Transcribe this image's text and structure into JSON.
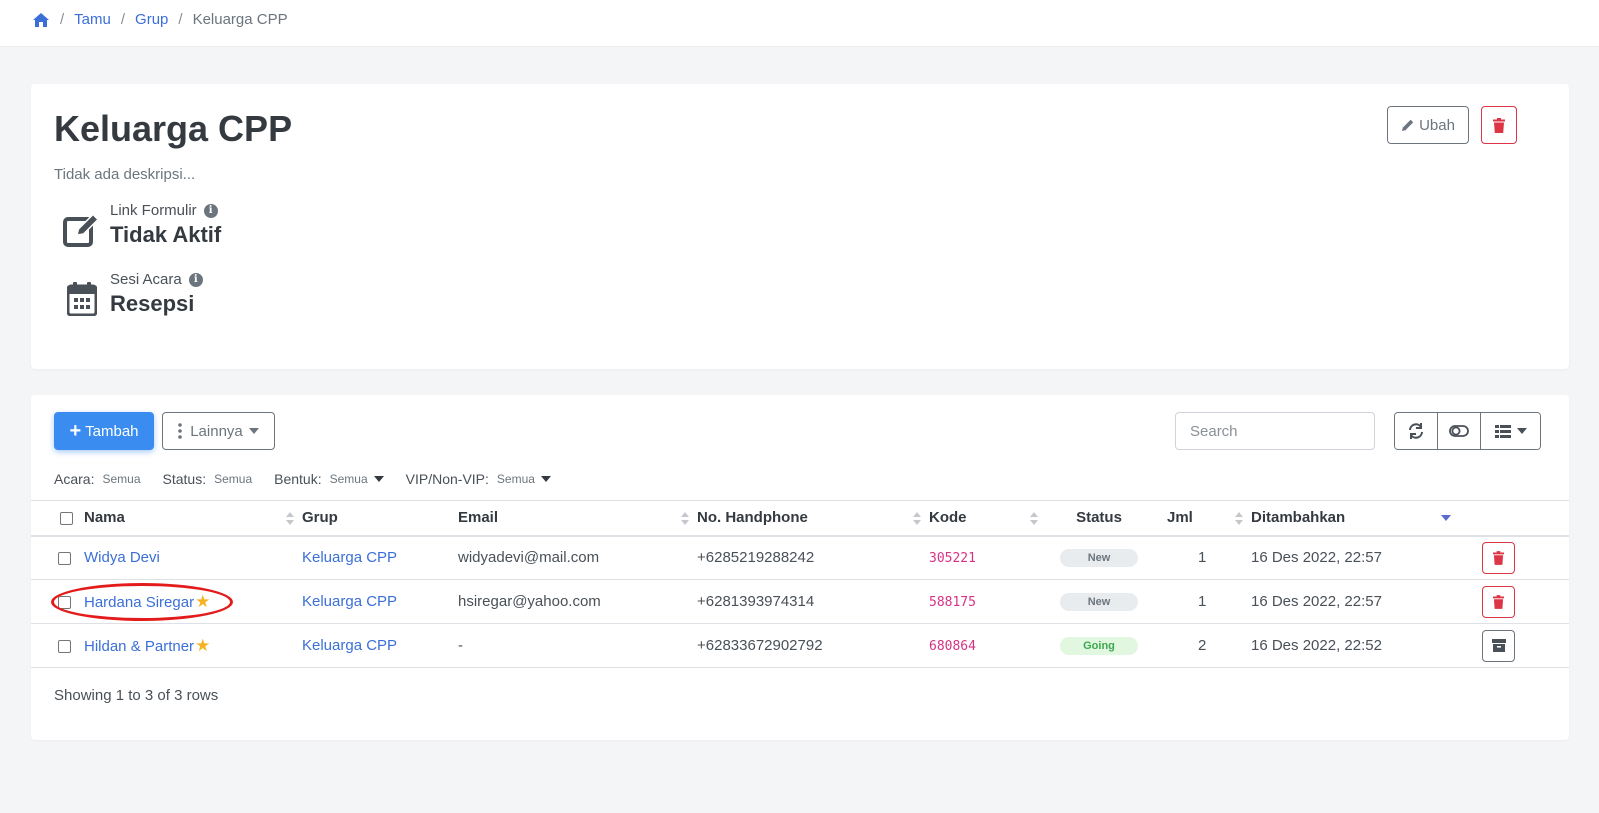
{
  "breadcrumb": {
    "items": [
      "Tamu",
      "Grup"
    ],
    "current": "Keluarga CPP"
  },
  "group": {
    "title": "Keluarga CPP",
    "description": "Tidak ada deskripsi...",
    "edit_label": "Ubah",
    "link_formulir_label": "Link Formulir",
    "link_formulir_value": "Tidak Aktif",
    "sesi_acara_label": "Sesi Acara",
    "sesi_acara_value": "Resepsi"
  },
  "toolbar": {
    "add_label": "Tambah",
    "more_label": "Lainnya",
    "search_placeholder": "Search"
  },
  "filters": [
    {
      "label": "Acara:",
      "value": "Semua",
      "dropdown": false
    },
    {
      "label": "Status:",
      "value": "Semua",
      "dropdown": false
    },
    {
      "label": "Bentuk:",
      "value": "Semua",
      "dropdown": true
    },
    {
      "label": "VIP/Non-VIP:",
      "value": "Semua",
      "dropdown": true
    }
  ],
  "table": {
    "columns": [
      "Nama",
      "Grup",
      "Email",
      "No. Handphone",
      "Kode",
      "Status",
      "Jml",
      "Ditambahkan"
    ],
    "rows": [
      {
        "nama": "Widya Devi",
        "vip": false,
        "grup": "Keluarga CPP",
        "email": "widyadevi@mail.com",
        "phone": "+6285219288242",
        "kode": "305221",
        "status": "New",
        "jml": "1",
        "ditambahkan": "16 Des 2022, 22:57",
        "action": "delete"
      },
      {
        "nama": "Hardana Siregar",
        "vip": true,
        "grup": "Keluarga CPP",
        "email": "hsiregar@yahoo.com",
        "phone": "+6281393974314",
        "kode": "588175",
        "status": "New",
        "jml": "1",
        "ditambahkan": "16 Des 2022, 22:57",
        "action": "delete"
      },
      {
        "nama": "Hildan & Partner",
        "vip": true,
        "grup": "Keluarga CPP",
        "email": "-",
        "phone": "+62833672902792",
        "kode": "680864",
        "status": "Going",
        "jml": "2",
        "ditambahkan": "16 Des 2022, 22:52",
        "action": "archive"
      }
    ],
    "footer": "Showing 1 to 3 of 3 rows"
  },
  "colors": {
    "link": "#3b6fd8",
    "primary": "#3b8cf0",
    "danger": "#dc3545",
    "code": "#d63384",
    "star": "#f5b323",
    "annotation": "#e31b1b"
  }
}
